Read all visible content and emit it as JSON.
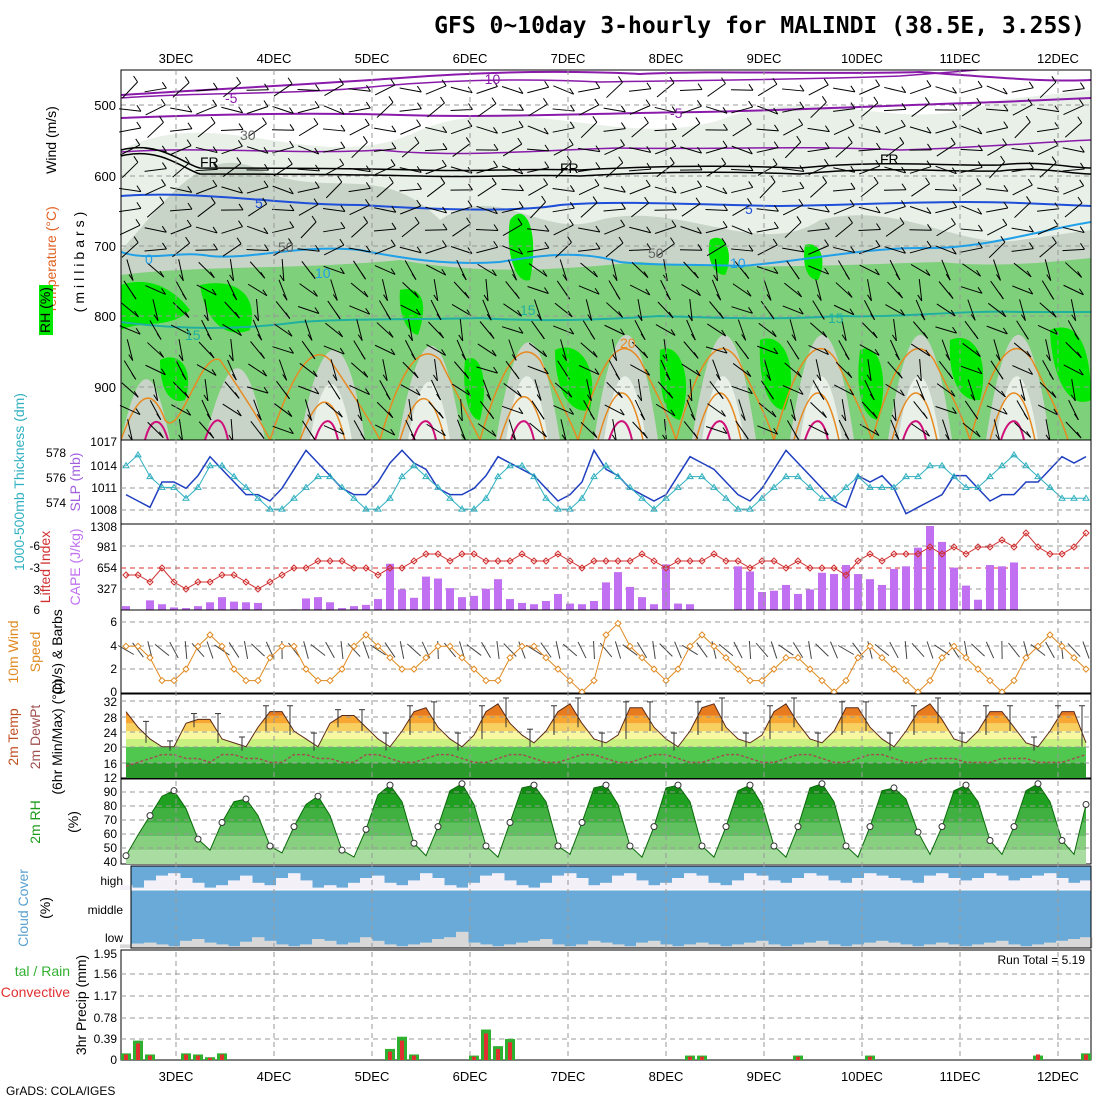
{
  "title": "GFS 0~10day 3-hourly for MALINDI (38.5E, 3.25S)",
  "footer": "GrADS: COLA/IGES",
  "run_total": "Run Total = 5.19",
  "colors": {
    "rh_dark": "#00e800",
    "rh_mid": "#7fd07a",
    "rh_light": "#c8d4c8",
    "rh_pale": "#e8f0e8",
    "temp_purple": "#8a1aaa",
    "temp_blue": "#1f4fd8",
    "temp_cyan": "#1fa0e8",
    "temp_teal": "#20b0a0",
    "temp_orange": "#e88a20",
    "temp_magenta": "#d0107a",
    "slp": "#1f3fc0",
    "thickness": "#30b0c0",
    "lifted": "#d03030",
    "cape": "#c070f0",
    "wind10": "#e08a20",
    "temp2m": "#e87a20",
    "dewpt": "#a05050",
    "rh2m": "#1a9a1a",
    "cloud_blue": "#6aaad8",
    "cloud_white": "#f4f0f8",
    "cloud_gray": "#d8d8d8",
    "precip_green": "#30b030",
    "precip_red": "#e03030"
  },
  "axes": {
    "day_labels": [
      "3DEC",
      "4DEC",
      "5DEC",
      "6DEC",
      "7DEC",
      "8DEC",
      "9DEC",
      "10DEC",
      "11DEC",
      "12DEC"
    ]
  },
  "panels": {
    "upper": {
      "ylabel_wind": "Wind (m/s)",
      "ylabel_temp": "Temperature (°C)",
      "ylabel_rh": "RH (%)",
      "ylabel_p": "(millibars)",
      "pressure_ticks": [
        "500",
        "600",
        "700",
        "800",
        "900"
      ],
      "contour_labels": [
        "-10",
        "-5",
        "-5",
        "FR",
        "FR",
        "FR",
        "5",
        "5",
        "0",
        "10",
        "10",
        "15",
        "15",
        "15",
        "20",
        "30",
        "50",
        "50"
      ]
    },
    "slp": {
      "ylabel_thk": "1000-500mb Thickness (dm)",
      "ylabel_slp": "SLP (mb)",
      "left_ticks": [
        "578",
        "576",
        "574"
      ],
      "right_ticks": [
        "1017",
        "1014",
        "1011",
        "1008"
      ]
    },
    "cape": {
      "ylabel_li": "Lifted Index",
      "ylabel_cape": "CAPE (J/kg)",
      "left_ticks": [
        "-6",
        "-3",
        "0",
        "3",
        "6"
      ],
      "right_ticks": [
        "1308",
        "981",
        "654",
        "327"
      ]
    },
    "wind10": {
      "ylabel1": "10m Wind",
      "ylabel2": "Speed",
      "ylabel3": "(m/s) & Barbs",
      "ticks": [
        "6",
        "4",
        "2",
        "0"
      ]
    },
    "temp2m": {
      "ylabel1": "2m Temp",
      "ylabel2": "2m DewPt",
      "ylabel3": "(6hr Min/Max) (°C)",
      "ticks": [
        "32",
        "28",
        "24",
        "20",
        "16",
        "12"
      ]
    },
    "rh2m": {
      "ylabel1": "2m RH",
      "ylabel2": "(%)",
      "ticks": [
        "90",
        "80",
        "70",
        "60",
        "50",
        "40"
      ]
    },
    "cloud": {
      "ylabel1": "Cloud Cover",
      "ylabel2": "(%)",
      "levels": [
        "high",
        "middle",
        "low"
      ]
    },
    "precip": {
      "ylabel1": "tal / Rain",
      "ylabel2": "Convective",
      "ylabel3": "3hr Precip (mm)",
      "ticks": [
        "1.95",
        "1.56",
        "1.17",
        "0.78",
        "0.39",
        "0"
      ]
    }
  },
  "chart_data": {
    "type": "meteogram",
    "time_step_hours": 3,
    "n_steps": 81,
    "x_categories": [
      "3DEC",
      "4DEC",
      "5DEC",
      "6DEC",
      "7DEC",
      "8DEC",
      "9DEC",
      "10DEC",
      "11DEC",
      "12DEC"
    ],
    "slp_mb": {
      "ylim": [
        1005,
        1017
      ],
      "values": [
        1009,
        1008,
        1007,
        1011,
        1011,
        1010,
        1012,
        1015,
        1013,
        1011,
        1009,
        1009,
        1008,
        1010,
        1013,
        1016,
        1014,
        1012,
        1010,
        1009,
        1009,
        1011,
        1014,
        1016,
        1014,
        1013,
        1010,
        1009,
        1009,
        1010,
        1012,
        1015,
        1014,
        1013,
        1012,
        1010,
        1008,
        1009,
        1011,
        1016,
        1013,
        1012,
        1010,
        1009,
        1008,
        1009,
        1012,
        1015,
        1014,
        1013,
        1011,
        1009,
        1008,
        1010,
        1013,
        1016,
        1014,
        1012,
        1010,
        1008,
        1007,
        1012,
        1011,
        1012,
        1010,
        1006,
        1007,
        1008,
        1009,
        1012,
        1012,
        1010,
        1008,
        1009,
        1009,
        1011,
        1011,
        1013,
        1015,
        1014,
        1015
      ]
    },
    "thickness_dm": {
      "ylim": [
        572,
        579
      ],
      "values": [
        577,
        578,
        576,
        575,
        575,
        574,
        575,
        577,
        577,
        576,
        575,
        574,
        573,
        573,
        574,
        575,
        576,
        576,
        575,
        574,
        573,
        573,
        574,
        576,
        577,
        576,
        575,
        574,
        573,
        573,
        574,
        576,
        577,
        577,
        576,
        574,
        573,
        573,
        574,
        576,
        577,
        576,
        575,
        574,
        573,
        574,
        575,
        576,
        576,
        575,
        574,
        573,
        573,
        574,
        575,
        576,
        576,
        575,
        574,
        574,
        575,
        576,
        575,
        575,
        575,
        576,
        576,
        577,
        577,
        576,
        575,
        575,
        576,
        577,
        578,
        577,
        576,
        575,
        574,
        574,
        574
      ]
    },
    "lifted_index": {
      "ylim": [
        6,
        -6
      ],
      "values": [
        1,
        1,
        2,
        0,
        2,
        3,
        2,
        2,
        1,
        1,
        2,
        3,
        2,
        1,
        0,
        0,
        -1,
        -1,
        -1,
        0,
        0,
        1,
        0,
        0,
        -1,
        -2,
        -2,
        -1,
        -2,
        -2,
        -1,
        -1,
        -1,
        -2,
        -1,
        -1,
        -2,
        -1,
        0,
        -1,
        -1,
        -1,
        -1,
        -2,
        -1,
        0,
        -1,
        -1,
        -1,
        -2,
        -1,
        -1,
        0,
        -1,
        -1,
        0,
        -1,
        0,
        0,
        0,
        1,
        -1,
        -2,
        -1,
        -2,
        -2,
        -2,
        -3,
        -2,
        -3,
        -2,
        -3,
        -3,
        -4,
        -3,
        -5,
        -3,
        -2,
        -2,
        -3,
        -5
      ]
    },
    "cape_jkg": {
      "ylim": [
        0,
        1308
      ],
      "values": [
        60,
        0,
        150,
        90,
        40,
        30,
        60,
        120,
        200,
        130,
        120,
        110,
        0,
        0,
        10,
        180,
        200,
        120,
        30,
        60,
        80,
        170,
        720,
        320,
        190,
        520,
        490,
        340,
        200,
        220,
        330,
        480,
        170,
        110,
        90,
        140,
        250,
        100,
        90,
        140,
        430,
        590,
        360,
        200,
        90,
        710,
        100,
        90,
        0,
        0,
        0,
        680,
        600,
        280,
        300,
        390,
        250,
        320,
        580,
        560,
        700,
        560,
        480,
        390,
        640,
        680,
        970,
        1350,
        1060,
        660,
        380,
        160,
        700,
        680,
        740,
        0,
        0,
        0,
        0,
        0,
        0
      ]
    },
    "wind10_ms": {
      "ylim": [
        0,
        7
      ],
      "values": [
        4,
        4,
        3,
        1,
        1,
        2,
        4,
        5,
        4,
        2,
        1,
        1,
        3,
        4,
        4,
        2,
        1,
        1,
        2,
        4,
        5,
        4,
        3,
        2,
        2,
        3,
        4,
        4,
        3,
        2,
        1,
        1,
        3,
        4,
        4,
        3,
        2,
        1,
        0,
        1,
        5,
        6,
        4,
        3,
        2,
        1,
        2,
        4,
        5,
        4,
        3,
        2,
        1,
        1,
        2,
        3,
        3,
        2,
        1,
        0,
        1,
        3,
        4,
        3,
        2,
        1,
        0,
        1,
        3,
        4,
        3,
        2,
        1,
        0,
        1,
        3,
        4,
        5,
        4,
        3,
        2
      ]
    },
    "temp2m_c": {
      "ylim": [
        12,
        33
      ],
      "values": [
        29,
        25,
        22,
        20,
        20,
        26,
        27,
        27,
        22,
        21,
        20,
        25,
        29,
        29,
        24,
        22,
        20,
        26,
        28,
        28,
        25,
        22,
        20,
        24,
        29,
        30,
        25,
        22,
        20,
        23,
        29,
        31,
        26,
        23,
        21,
        24,
        29,
        31,
        26,
        22,
        21,
        23,
        30,
        30,
        25,
        22,
        20,
        24,
        30,
        31,
        25,
        22,
        21,
        23,
        29,
        31,
        26,
        22,
        21,
        24,
        30,
        30,
        25,
        22,
        20,
        24,
        29,
        31,
        27,
        22,
        21,
        24,
        29,
        29,
        25,
        21,
        20,
        24,
        29,
        29,
        21
      ]
    },
    "dewpt2m_c": {
      "ylim": [
        12,
        33
      ],
      "values": [
        15,
        16,
        17,
        18,
        18,
        17,
        17,
        16,
        18,
        18,
        17,
        17,
        16,
        16,
        18,
        18,
        17,
        17,
        16,
        16,
        18,
        18,
        17,
        16,
        16,
        17,
        18,
        18,
        17,
        16,
        16,
        17,
        18,
        18,
        17,
        16,
        16,
        17,
        18,
        18,
        17,
        16,
        16,
        17,
        18,
        18,
        17,
        16,
        16,
        17,
        18,
        18,
        17,
        16,
        16,
        17,
        18,
        18,
        17,
        16,
        16,
        17,
        18,
        18,
        17,
        16,
        16,
        17,
        17,
        17,
        16,
        16,
        16,
        17,
        17,
        17,
        16,
        16,
        16,
        17,
        18
      ]
    },
    "rh2m_pct": {
      "ylim": [
        35,
        95
      ],
      "values": [
        41,
        56,
        70,
        84,
        88,
        75,
        53,
        45,
        65,
        80,
        82,
        70,
        48,
        43,
        62,
        78,
        84,
        70,
        45,
        40,
        60,
        85,
        92,
        80,
        50,
        41,
        62,
        88,
        93,
        78,
        48,
        40,
        65,
        90,
        92,
        80,
        48,
        42,
        65,
        90,
        92,
        78,
        48,
        40,
        62,
        90,
        92,
        80,
        48,
        40,
        62,
        88,
        92,
        78,
        48,
        40,
        62,
        90,
        93,
        80,
        48,
        40,
        62,
        88,
        90,
        82,
        58,
        42,
        62,
        88,
        92,
        80,
        52,
        42,
        62,
        88,
        93,
        80,
        52,
        42,
        78
      ]
    },
    "cloud_high_pct": {
      "values": [
        20,
        10,
        40,
        60,
        70,
        50,
        30,
        10,
        20,
        40,
        60,
        30,
        20,
        50,
        70,
        40,
        10,
        20,
        10,
        30,
        50,
        60,
        30,
        20,
        40,
        70,
        50,
        20,
        10,
        30,
        60,
        70,
        40,
        20,
        10,
        30,
        60,
        70,
        50,
        20,
        30,
        60,
        70,
        40,
        20,
        30,
        50,
        70,
        60,
        30,
        20,
        40,
        70,
        60,
        40,
        30,
        50,
        70,
        60,
        40,
        30,
        50,
        70,
        60,
        50,
        40,
        30,
        60,
        70,
        50,
        40,
        50,
        70,
        60,
        40,
        50,
        60,
        70,
        50,
        30,
        40
      ]
    },
    "cloud_low_pct": {
      "values": [
        20,
        25,
        30,
        20,
        10,
        40,
        50,
        30,
        20,
        10,
        35,
        60,
        40,
        20,
        10,
        20,
        50,
        40,
        20,
        30,
        60,
        40,
        20,
        10,
        20,
        30,
        50,
        60,
        90,
        30,
        20,
        10,
        20,
        30,
        40,
        50,
        20,
        10,
        20,
        40,
        30,
        20,
        10,
        30,
        40,
        20,
        10,
        20,
        30,
        20,
        10,
        20,
        30,
        40,
        20,
        10,
        20,
        30,
        40,
        20,
        10,
        20,
        30,
        40,
        30,
        20,
        10,
        20,
        30,
        20,
        10,
        20,
        30,
        40,
        20,
        10,
        20,
        30,
        40,
        50,
        60
      ]
    },
    "precip_total_mm": {
      "ylim": [
        0,
        1.95
      ],
      "values": [
        0.12,
        0.35,
        0.1,
        0,
        0,
        0.12,
        0.1,
        0.05,
        0.12,
        0,
        0,
        0,
        0,
        0,
        0,
        0,
        0,
        0,
        0,
        0,
        0,
        0,
        0.2,
        0.42,
        0.1,
        0,
        0,
        0,
        0,
        0.08,
        0.55,
        0.25,
        0.38,
        0,
        0,
        0,
        0,
        0,
        0,
        0,
        0,
        0,
        0,
        0,
        0,
        0,
        0,
        0.08,
        0.08,
        0,
        0,
        0,
        0,
        0,
        0,
        0,
        0.08,
        0,
        0,
        0,
        0,
        0,
        0.08,
        0,
        0,
        0,
        0,
        0,
        0,
        0,
        0,
        0,
        0,
        0,
        0,
        0,
        0.08,
        0,
        0,
        0,
        0.12
      ]
    },
    "precip_conv_mm": {
      "ylim": [
        0,
        1.95
      ],
      "values": [
        0.1,
        0.3,
        0.08,
        0,
        0,
        0.1,
        0.08,
        0.04,
        0.1,
        0,
        0,
        0,
        0,
        0,
        0,
        0,
        0,
        0,
        0,
        0,
        0,
        0,
        0.15,
        0.35,
        0.08,
        0,
        0,
        0,
        0,
        0.06,
        0.48,
        0.2,
        0.32,
        0,
        0,
        0,
        0,
        0,
        0,
        0,
        0,
        0,
        0,
        0,
        0,
        0,
        0,
        0.06,
        0.06,
        0,
        0,
        0,
        0,
        0,
        0,
        0,
        0.06,
        0,
        0,
        0,
        0,
        0,
        0.06,
        0,
        0,
        0,
        0,
        0,
        0,
        0,
        0,
        0,
        0,
        0,
        0,
        0,
        0.1,
        0,
        0,
        0,
        0.1
      ]
    }
  }
}
